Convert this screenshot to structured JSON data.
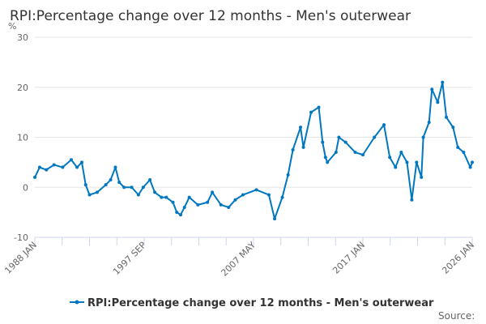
{
  "chart_data": {
    "type": "line",
    "title": "RPI:Percentage change over 12 months - Men's outerwear",
    "ylabel": "%",
    "xlabel": "",
    "ylim": [
      -10,
      30
    ],
    "yticks": [
      "30",
      "20",
      "10",
      "0",
      "-10"
    ],
    "xlim": [
      "1988-01",
      "2026-01"
    ],
    "xtick_labels": [
      "1988 JAN",
      "1997 SEP",
      "2007 MAY",
      "2017 JAN",
      "2026 JAN"
    ],
    "grid": true,
    "legend_placement": "bottom",
    "color": "#0077c0",
    "series": [
      {
        "name": "RPI:Percentage change over 12 months - Men's outerwear",
        "points": [
          [
            "1988-01",
            2
          ],
          [
            "1988-06",
            4
          ],
          [
            "1989-01",
            3.5
          ],
          [
            "1989-09",
            4.5
          ],
          [
            "1990-06",
            4
          ],
          [
            "1991-03",
            5.5
          ],
          [
            "1991-09",
            4
          ],
          [
            "1992-02",
            5
          ],
          [
            "1992-06",
            0.5
          ],
          [
            "1992-10",
            -1.5
          ],
          [
            "1993-06",
            -1
          ],
          [
            "1994-03",
            0.5
          ],
          [
            "1994-08",
            1.5
          ],
          [
            "1995-01",
            4
          ],
          [
            "1995-05",
            1
          ],
          [
            "1995-10",
            0
          ],
          [
            "1996-06",
            0
          ],
          [
            "1997-01",
            -1.5
          ],
          [
            "1997-06",
            0
          ],
          [
            "1998-01",
            1.5
          ],
          [
            "1998-06",
            -1
          ],
          [
            "1999-01",
            -2
          ],
          [
            "1999-06",
            -2
          ],
          [
            "2000-01",
            -3
          ],
          [
            "2000-05",
            -5
          ],
          [
            "2000-09",
            -5.5
          ],
          [
            "2001-01",
            -4
          ],
          [
            "2001-06",
            -2
          ],
          [
            "2002-03",
            -3.5
          ],
          [
            "2003-01",
            -3
          ],
          [
            "2003-06",
            -1
          ],
          [
            "2004-03",
            -3.5
          ],
          [
            "2004-11",
            -4
          ],
          [
            "2005-06",
            -2.5
          ],
          [
            "2006-02",
            -1.5
          ],
          [
            "2007-04",
            -0.5
          ],
          [
            "2008-05",
            -1.5
          ],
          [
            "2008-11",
            -6.3
          ],
          [
            "2009-07",
            -2
          ],
          [
            "2010-01",
            2.5
          ],
          [
            "2010-06",
            7.5
          ],
          [
            "2011-02",
            12
          ],
          [
            "2011-05",
            8
          ],
          [
            "2012-01",
            15
          ],
          [
            "2012-09",
            16
          ],
          [
            "2013-01",
            9
          ],
          [
            "2013-04",
            6
          ],
          [
            "2013-06",
            5
          ],
          [
            "2014-03",
            7
          ],
          [
            "2014-06",
            10
          ],
          [
            "2015-01",
            9
          ],
          [
            "2015-11",
            7
          ],
          [
            "2016-07",
            6.5
          ],
          [
            "2017-07",
            10
          ],
          [
            "2018-05",
            12.5
          ],
          [
            "2018-11",
            6
          ],
          [
            "2019-05",
            4
          ],
          [
            "2019-11",
            7
          ],
          [
            "2020-05",
            5
          ],
          [
            "2020-10",
            -2.5
          ],
          [
            "2021-03",
            5
          ],
          [
            "2021-08",
            2
          ],
          [
            "2021-10",
            10
          ],
          [
            "2022-04",
            13
          ],
          [
            "2022-07",
            19.6
          ],
          [
            "2023-01",
            17
          ],
          [
            "2023-06",
            21
          ],
          [
            "2023-10",
            14
          ],
          [
            "2024-05",
            12
          ],
          [
            "2024-10",
            8
          ],
          [
            "2025-04",
            7
          ],
          [
            "2025-11",
            4
          ],
          [
            "2026-01",
            5
          ]
        ]
      }
    ],
    "source_label": "Source:"
  }
}
